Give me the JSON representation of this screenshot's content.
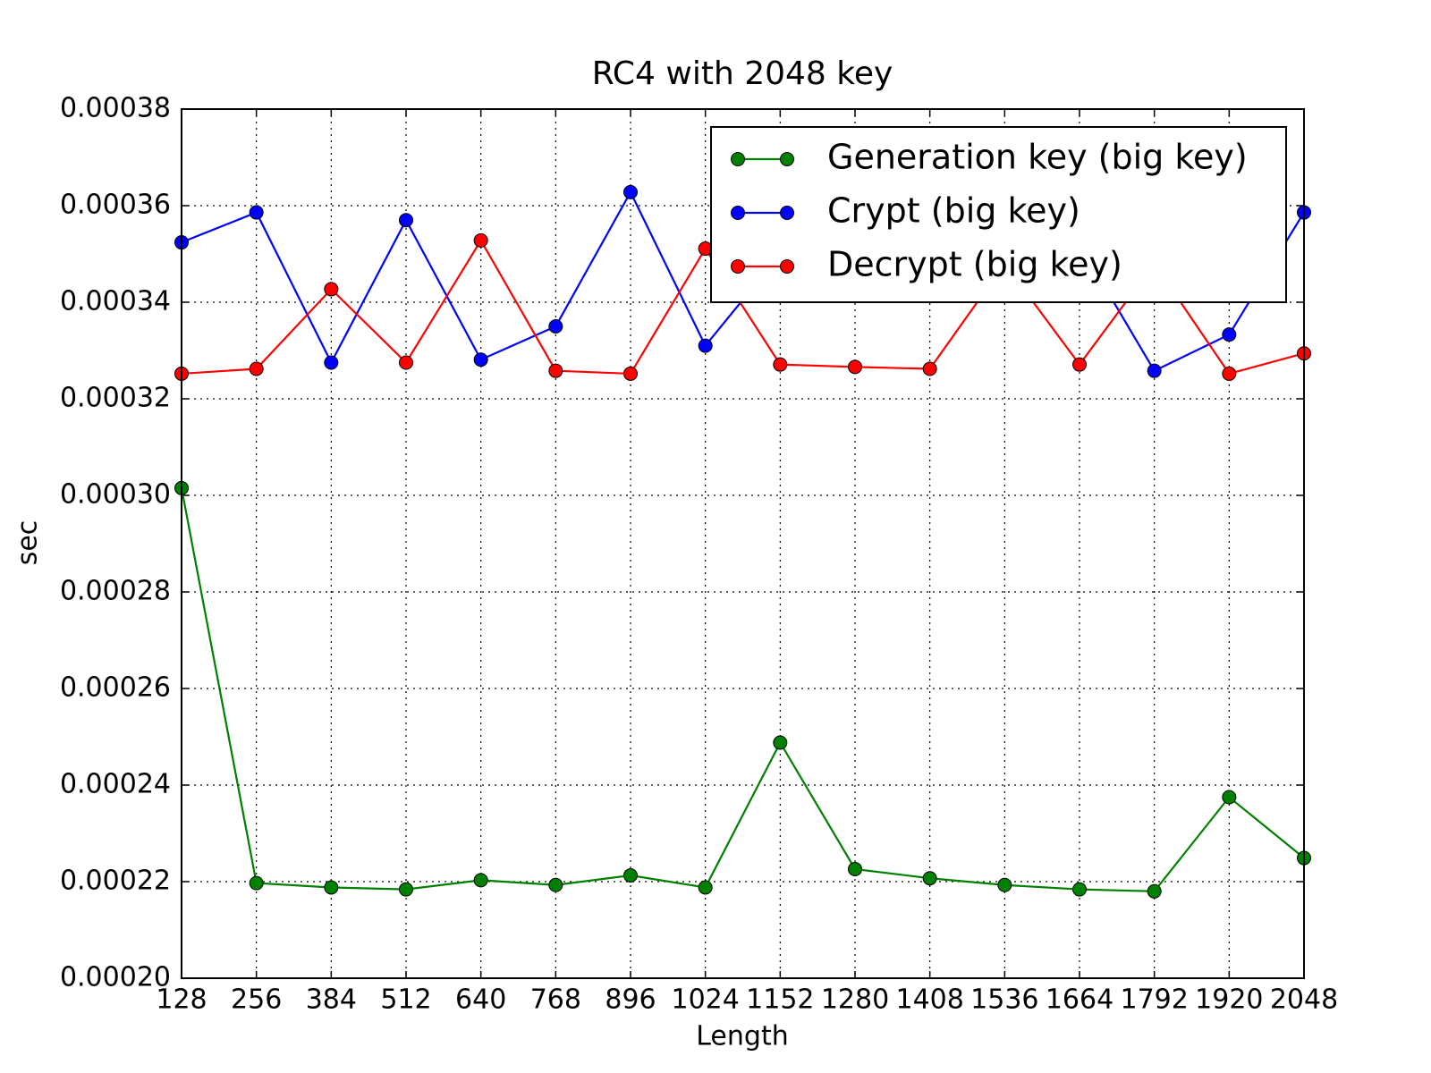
{
  "chart_data": {
    "type": "line",
    "title": "RC4 with 2048 key",
    "x_label": "Length",
    "y_label": "sec",
    "x": [
      128,
      256,
      384,
      512,
      640,
      768,
      896,
      1024,
      1152,
      1280,
      1408,
      1536,
      1664,
      1792,
      1920,
      2048
    ],
    "series": [
      {
        "name": "Generation key (big key)",
        "color": "#008000",
        "values": [
          0.0003015,
          0.0002197,
          0.0002188,
          0.0002184,
          0.0002203,
          0.0002193,
          0.0002213,
          0.0002188,
          0.0002488,
          0.0002226,
          0.0002207,
          0.0002193,
          0.0002184,
          0.000218,
          0.0002375,
          0.0002249
        ]
      },
      {
        "name": "Crypt (big key)",
        "color": "#0000ff",
        "values": [
          0.0003524,
          0.0003586,
          0.0003275,
          0.000357,
          0.0003281,
          0.000335,
          0.0003628,
          0.000331,
          0.00035,
          0.000348,
          0.000355,
          0.00035,
          0.000352,
          0.0003258,
          0.0003333,
          0.0003586
        ]
      },
      {
        "name": "Decrypt (big key)",
        "color": "#ff0000",
        "values": [
          0.0003252,
          0.0003262,
          0.0003427,
          0.0003275,
          0.0003528,
          0.0003258,
          0.0003252,
          0.0003511,
          0.0003271,
          0.0003266,
          0.0003262,
          0.000348,
          0.0003271,
          0.000348,
          0.0003252,
          0.0003294
        ]
      }
    ],
    "xlim": [
      128,
      2048
    ],
    "xticks": [
      128,
      256,
      384,
      512,
      640,
      768,
      896,
      1024,
      1152,
      1280,
      1408,
      1536,
      1664,
      1792,
      1920,
      2048
    ],
    "ylim": [
      0.0002,
      0.00038
    ],
    "yticks": [
      {
        "value": 0.0002,
        "label": "0.00020"
      },
      0.00022,
      0.00024,
      0.00026,
      0.00028,
      {
        "value": 0.0003,
        "label": "0.00030"
      },
      0.00032,
      0.00034,
      0.00036,
      0.00038
    ],
    "grid": true,
    "legend": "upper right"
  }
}
